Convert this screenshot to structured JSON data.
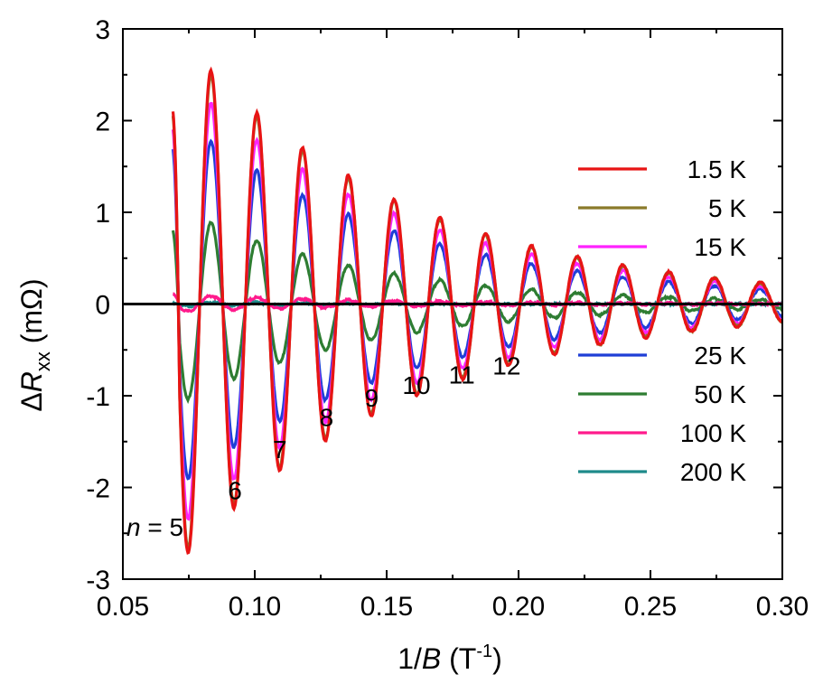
{
  "chart_data": {
    "type": "line",
    "title": "",
    "xlabel": {
      "prefix": "1/",
      "var": "B",
      "unit_open": " (T",
      "unit_exp": "-1",
      "unit_close": ")"
    },
    "ylabel": {
      "delta": "Δ",
      "var": "R",
      "sub": "xx",
      "unit": " (mΩ)"
    },
    "xlim": [
      0.05,
      0.3
    ],
    "ylim": [
      -3,
      3
    ],
    "xticks": [
      0.05,
      0.1,
      0.15,
      0.2,
      0.25,
      0.3
    ],
    "xtick_labels": [
      "0.05",
      "0.10",
      "0.15",
      "0.20",
      "0.25",
      "0.30"
    ],
    "yticks": [
      -3,
      -2,
      -1,
      0,
      1,
      2,
      3
    ],
    "ytick_labels": [
      "-3",
      "-2",
      "-1",
      "0",
      "1",
      "2",
      "3"
    ],
    "grid": false,
    "oscillation": {
      "x_start": 0.069,
      "period": 0.01735,
      "phase_ref": 0.0835
    },
    "series": [
      {
        "name": "200 K",
        "label": "200 K",
        "color": "#1e8a8a",
        "amplitude": 0.02,
        "decay": 0.02,
        "offset": 0.0,
        "start": 0.0
      },
      {
        "name": "50 K",
        "label": "50 K",
        "color": "#2e7d32",
        "amplitude": 0.9,
        "decay": 0.43,
        "offset": -0.02,
        "start": 0.8
      },
      {
        "name": "25 K",
        "label": "25 K",
        "color": "#1f3fd6",
        "amplitude": 1.75,
        "decay": 0.8,
        "offset": 0.03,
        "start": 1.7
      },
      {
        "name": "15 K",
        "label": "15 K",
        "color": "#ff22ff",
        "amplitude": 2.15,
        "decay": 0.92,
        "offset": 0.04,
        "start": 1.9
      },
      {
        "name": "100 K",
        "label": "100 K",
        "color": "#ff1a8c",
        "amplitude": 0.08,
        "decay": 0.1,
        "offset": 0.01,
        "start": 0.12
      },
      {
        "name": "5 K",
        "label": "5 K",
        "color": "#8a7a2a",
        "amplitude": 2.45,
        "decay": 0.97,
        "offset": 0.05,
        "start": 2.05
      },
      {
        "name": "1.5 K",
        "label": "1.5 K",
        "color": "#e81414",
        "amplitude": 2.5,
        "decay": 0.98,
        "offset": 0.05,
        "start": 2.1
      }
    ],
    "legend_top": [
      "1.5 K",
      "5 K",
      "15 K"
    ],
    "legend_bottom": [
      "25 K",
      "50 K",
      "100 K",
      "200 K"
    ],
    "baseline": {
      "y": 0,
      "color": "#000000"
    },
    "annotations": [
      {
        "text": "5",
        "prefix": "n",
        "eq": " = ",
        "x": 0.0745,
        "y": -2.43
      },
      {
        "text": "6",
        "x": 0.0925,
        "y": -2.03
      },
      {
        "text": "7",
        "x": 0.1095,
        "y": -1.58
      },
      {
        "text": "8",
        "x": 0.1272,
        "y": -1.23
      },
      {
        "text": "9",
        "x": 0.1443,
        "y": -1.02
      },
      {
        "text": "10",
        "x": 0.1613,
        "y": -0.88
      },
      {
        "text": "11",
        "x": 0.1785,
        "y": -0.77
      },
      {
        "text": "12",
        "x": 0.1955,
        "y": -0.67
      }
    ]
  }
}
